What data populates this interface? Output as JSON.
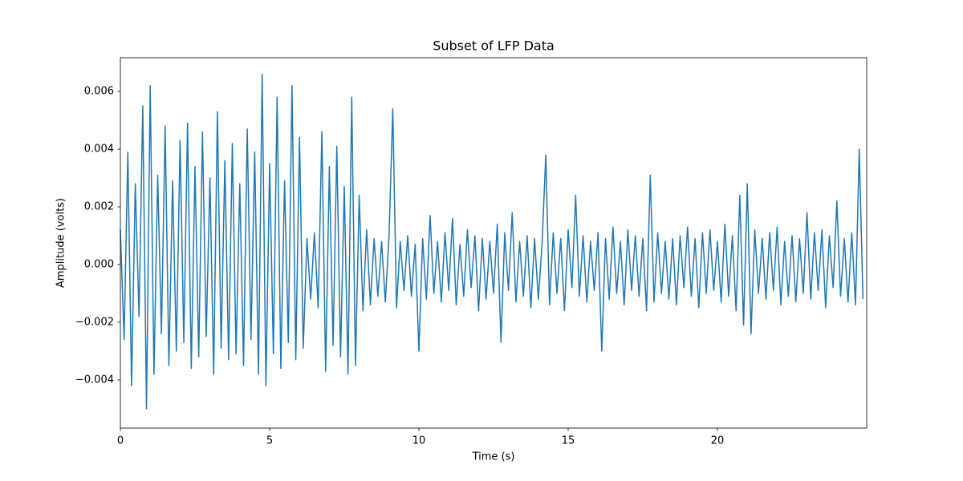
{
  "chart_data": {
    "type": "line",
    "title": "Subset of LFP Data",
    "xlabel": "Time (s)",
    "ylabel": "Amplitude (volts)",
    "color": "#1f77b4",
    "xlim": [
      0,
      25
    ],
    "xticks": [
      0,
      5,
      10,
      15,
      20
    ],
    "ylim": [
      -0.00567,
      0.00717
    ],
    "yticks": [
      {
        "value": -0.004,
        "label": "−0.004"
      },
      {
        "value": -0.002,
        "label": "−0.002"
      },
      {
        "value": 0,
        "label": "0.000"
      },
      0.002,
      0.004,
      0.006
    ],
    "x": [
      0,
      0.125,
      0.25,
      0.375,
      0.5,
      0.625,
      0.75,
      0.875,
      1,
      1.125,
      1.25,
      1.375,
      1.5,
      1.625,
      1.75,
      1.875,
      2,
      2.125,
      2.25,
      2.375,
      2.5,
      2.625,
      2.75,
      2.875,
      3,
      3.125,
      3.25,
      3.375,
      3.5,
      3.625,
      3.75,
      3.875,
      4,
      4.125,
      4.25,
      4.375,
      4.5,
      4.625,
      4.75,
      4.875,
      5,
      5.125,
      5.25,
      5.375,
      5.5,
      5.625,
      5.75,
      5.875,
      6,
      6.125,
      6.25,
      6.375,
      6.5,
      6.625,
      6.75,
      6.875,
      7,
      7.125,
      7.25,
      7.375,
      7.5,
      7.625,
      7.75,
      7.875,
      8,
      8.125,
      8.25,
      8.375,
      8.5,
      8.625,
      8.75,
      8.875,
      9,
      9.125,
      9.25,
      9.375,
      9.5,
      9.625,
      9.75,
      9.875,
      10,
      10.125,
      10.25,
      10.375,
      10.5,
      10.625,
      10.75,
      10.875,
      11,
      11.125,
      11.25,
      11.375,
      11.5,
      11.625,
      11.75,
      11.875,
      12,
      12.125,
      12.25,
      12.375,
      12.5,
      12.625,
      12.75,
      12.875,
      13,
      13.125,
      13.25,
      13.375,
      13.5,
      13.625,
      13.75,
      13.875,
      14,
      14.125,
      14.25,
      14.375,
      14.5,
      14.625,
      14.75,
      14.875,
      15,
      15.125,
      15.25,
      15.375,
      15.5,
      15.625,
      15.75,
      15.875,
      16,
      16.125,
      16.25,
      16.375,
      16.5,
      16.625,
      16.75,
      16.875,
      17,
      17.125,
      17.25,
      17.375,
      17.5,
      17.625,
      17.75,
      17.875,
      18,
      18.125,
      18.25,
      18.375,
      18.5,
      18.625,
      18.75,
      18.875,
      19,
      19.125,
      19.25,
      19.375,
      19.5,
      19.625,
      19.75,
      19.875,
      20,
      20.125,
      20.25,
      20.375,
      20.5,
      20.625,
      20.75,
      20.875,
      21,
      21.125,
      21.25,
      21.375,
      21.5,
      21.625,
      21.75,
      21.875,
      22,
      22.125,
      22.25,
      22.375,
      22.5,
      22.625,
      22.75,
      22.875,
      23,
      23.125,
      23.25,
      23.375,
      23.5,
      23.625,
      23.75,
      23.875,
      24,
      24.125,
      24.25,
      24.375,
      24.5,
      24.625,
      24.75,
      24.875
    ],
    "values": [
      0.0012,
      -0.0026,
      0.0039,
      -0.0042,
      0.0028,
      -0.0018,
      0.0055,
      -0.005,
      0.0062,
      -0.0038,
      0.0031,
      -0.0024,
      0.0048,
      -0.0035,
      0.0029,
      -0.003,
      0.0043,
      -0.0027,
      0.0049,
      -0.0036,
      0.0034,
      -0.0032,
      0.0046,
      -0.0025,
      0.003,
      -0.0038,
      0.0053,
      -0.0029,
      0.0036,
      -0.0033,
      0.0042,
      -0.0031,
      0.0028,
      -0.0035,
      0.0047,
      -0.0026,
      0.0039,
      -0.0038,
      0.0066,
      -0.0042,
      0.0035,
      -0.0031,
      0.0058,
      -0.0036,
      0.0029,
      -0.0027,
      0.0062,
      -0.0033,
      0.0044,
      -0.0029,
      0.0009,
      -0.0012,
      0.0011,
      -0.0015,
      0.0046,
      -0.0037,
      0.0034,
      -0.0028,
      0.0041,
      -0.0032,
      0.0027,
      -0.0038,
      0.0058,
      -0.0035,
      0.0024,
      -0.0016,
      0.0012,
      -0.0014,
      0.0009,
      -0.0011,
      0.0008,
      -0.0013,
      0.001,
      0.0054,
      -0.0015,
      0.0008,
      -0.0009,
      0.001,
      -0.0011,
      0.0007,
      -0.003,
      0.0009,
      -0.0012,
      0.0017,
      -0.001,
      0.0008,
      -0.0013,
      0.0011,
      -0.0009,
      0.0016,
      -0.0014,
      0.0007,
      -0.0011,
      0.0012,
      -0.0008,
      0.001,
      -0.0016,
      0.0009,
      -0.0012,
      0.0008,
      -0.001,
      0.0014,
      -0.0027,
      0.0011,
      -0.0009,
      0.0018,
      -0.0013,
      0.0008,
      -0.0011,
      0.001,
      -0.0015,
      0.0009,
      -0.0012,
      0.0007,
      0.0038,
      -0.0014,
      0.0011,
      -0.001,
      0.0009,
      -0.0016,
      0.0012,
      -0.0008,
      0.0024,
      -0.0011,
      0.001,
      -0.0013,
      0.0008,
      -0.0009,
      0.0011,
      -0.003,
      0.0009,
      -0.0012,
      0.0013,
      -0.001,
      0.0008,
      -0.0014,
      0.0012,
      -0.0009,
      0.001,
      -0.0011,
      0.0009,
      -0.0016,
      0.0031,
      -0.0013,
      0.0011,
      -0.001,
      0.0008,
      -0.0012,
      0.0009,
      -0.0014,
      0.001,
      -0.0008,
      0.0013,
      -0.0011,
      0.0009,
      -0.0015,
      0.0011,
      -0.001,
      0.0012,
      -0.0009,
      0.0008,
      -0.0013,
      0.0014,
      -0.0011,
      0.001,
      -0.0016,
      0.0024,
      -0.0021,
      0.0028,
      -0.0024,
      0.0012,
      -0.001,
      0.0009,
      -0.0012,
      0.0011,
      -0.0009,
      0.0013,
      -0.0014,
      0.0008,
      -0.0011,
      0.001,
      -0.0013,
      0.0009,
      -0.001,
      0.0018,
      -0.0012,
      0.0011,
      -0.0009,
      0.0012,
      -0.0015,
      0.001,
      -0.0008,
      0.0022,
      -0.0011,
      0.0009,
      -0.0013,
      0.0011,
      -0.0014,
      0.004,
      -0.0012
    ]
  }
}
